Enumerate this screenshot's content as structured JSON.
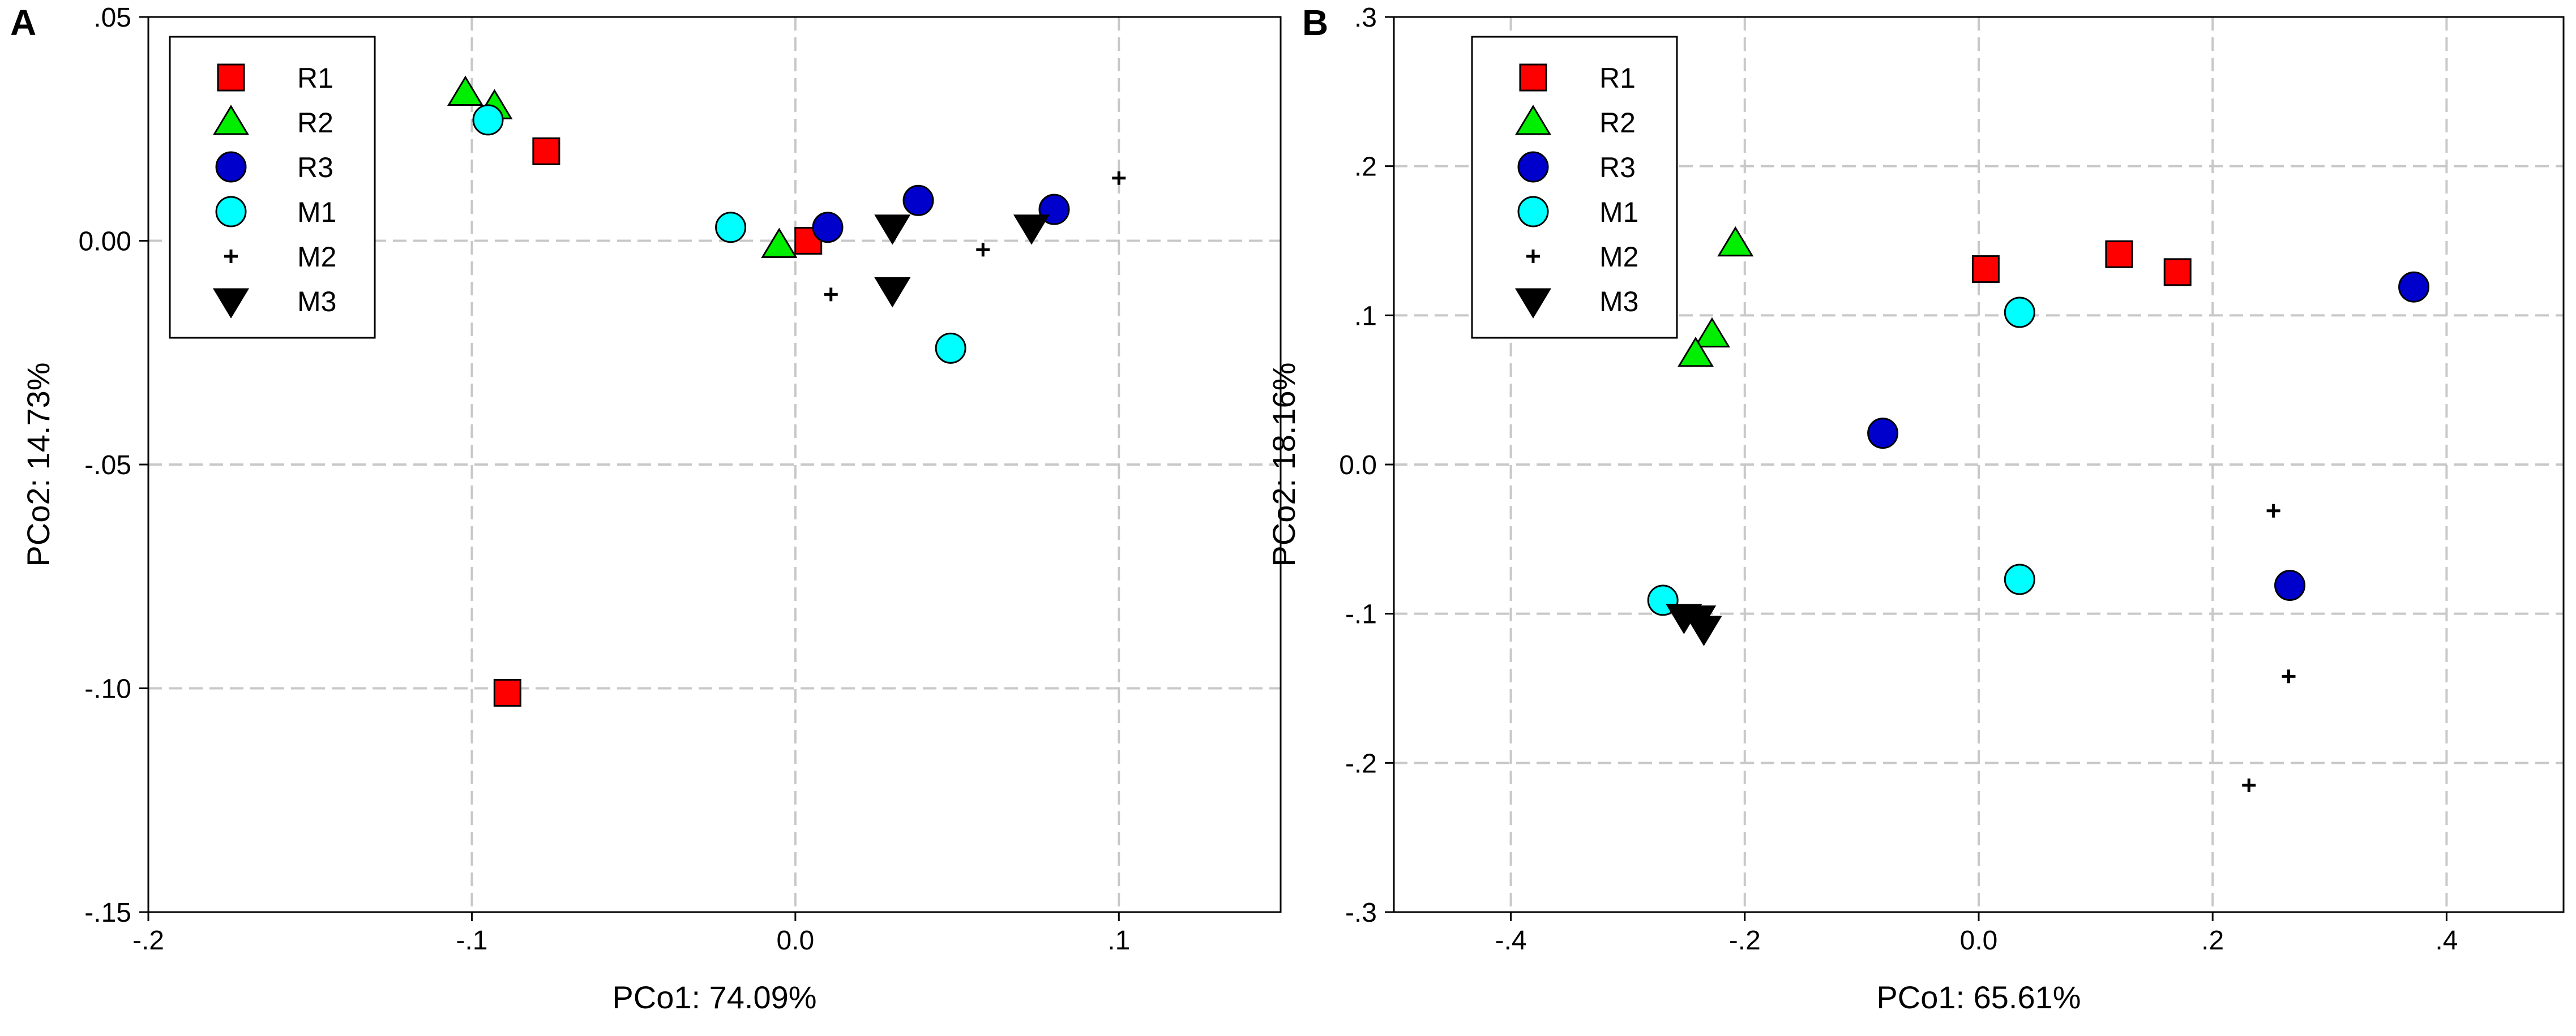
{
  "chart_data": [
    {
      "type": "scatter",
      "panel_label": "A",
      "xlabel": "PCo1: 74.09%",
      "ylabel": "PCo2: 14.73%",
      "xlim": [
        -0.2,
        0.15
      ],
      "ylim": [
        -0.15,
        0.05
      ],
      "xticks": [
        {
          "v": -0.2,
          "label": "-.2"
        },
        {
          "v": -0.1,
          "label": "-.1"
        },
        {
          "v": 0.0,
          "label": "0.0"
        },
        {
          "v": 0.1,
          "label": ".1"
        }
      ],
      "yticks": [
        {
          "v": 0.05,
          "label": ".05"
        },
        {
          "v": 0.0,
          "label": "0.00"
        },
        {
          "v": -0.05,
          "label": "-.05"
        },
        {
          "v": -0.1,
          "label": "-.10"
        },
        {
          "v": -0.15,
          "label": "-.15"
        }
      ],
      "grid": true,
      "legend_position": "top-left",
      "series": [
        {
          "name": "R1",
          "marker": "square",
          "color": "#ff0000",
          "points": [
            [
              -0.077,
              0.02
            ],
            [
              -0.089,
              -0.101
            ],
            [
              0.004,
              0.0
            ]
          ]
        },
        {
          "name": "R2",
          "marker": "triangle-up",
          "color": "#00ee00",
          "points": [
            [
              -0.102,
              0.033
            ],
            [
              -0.093,
              0.03
            ],
            [
              -0.005,
              -0.001
            ]
          ]
        },
        {
          "name": "R3",
          "marker": "circle",
          "color": "#0000cc",
          "points": [
            [
              0.01,
              0.003
            ],
            [
              0.038,
              0.009
            ],
            [
              0.08,
              0.007
            ]
          ]
        },
        {
          "name": "M1",
          "marker": "circle",
          "color": "#00ffff",
          "points": [
            [
              -0.095,
              0.027
            ],
            [
              -0.02,
              0.003
            ],
            [
              0.048,
              -0.024
            ]
          ]
        },
        {
          "name": "M2",
          "marker": "plus",
          "color": "#000000",
          "points": [
            [
              0.011,
              -0.012
            ],
            [
              0.058,
              -0.002
            ],
            [
              0.1,
              0.014
            ]
          ]
        },
        {
          "name": "M3",
          "marker": "triangle-down",
          "color": "#000000",
          "points": [
            [
              0.03,
              0.003
            ],
            [
              0.03,
              -0.011
            ],
            [
              0.073,
              0.003
            ]
          ]
        }
      ]
    },
    {
      "type": "scatter",
      "panel_label": "B",
      "xlabel": "PCo1: 65.61%",
      "ylabel": "PCo2: 18.16%",
      "xlim": [
        -0.5,
        0.5
      ],
      "ylim": [
        -0.3,
        0.3
      ],
      "xticks": [
        {
          "v": -0.4,
          "label": "-.4"
        },
        {
          "v": -0.2,
          "label": "-.2"
        },
        {
          "v": 0.0,
          "label": "0.0"
        },
        {
          "v": 0.2,
          "label": ".2"
        },
        {
          "v": 0.4,
          "label": ".4"
        }
      ],
      "yticks": [
        {
          "v": 0.3,
          "label": ".3"
        },
        {
          "v": 0.2,
          "label": ".2"
        },
        {
          "v": 0.1,
          "label": ".1"
        },
        {
          "v": 0.0,
          "label": "0.0"
        },
        {
          "v": -0.1,
          "label": "-.1"
        },
        {
          "v": -0.2,
          "label": "-.2"
        },
        {
          "v": -0.3,
          "label": "-.3"
        }
      ],
      "grid": true,
      "legend_position": "top-left",
      "series": [
        {
          "name": "R1",
          "marker": "square",
          "color": "#ff0000",
          "points": [
            [
              0.006,
              0.131
            ],
            [
              0.12,
              0.141
            ],
            [
              0.17,
              0.129
            ]
          ]
        },
        {
          "name": "R2",
          "marker": "triangle-up",
          "color": "#00ee00",
          "points": [
            [
              -0.208,
              0.148
            ],
            [
              -0.228,
              0.087
            ],
            [
              -0.242,
              0.074
            ]
          ]
        },
        {
          "name": "R3",
          "marker": "circle",
          "color": "#0000cc",
          "points": [
            [
              -0.082,
              0.021
            ],
            [
              0.372,
              0.119
            ],
            [
              0.266,
              -0.081
            ]
          ]
        },
        {
          "name": "M1",
          "marker": "circle",
          "color": "#00ffff",
          "points": [
            [
              0.035,
              0.102
            ],
            [
              0.035,
              -0.077
            ],
            [
              -0.27,
              -0.091
            ]
          ]
        },
        {
          "name": "M2",
          "marker": "plus",
          "color": "#000000",
          "points": [
            [
              0.252,
              -0.031
            ],
            [
              0.265,
              -0.142
            ],
            [
              0.231,
              -0.215
            ]
          ]
        },
        {
          "name": "M3",
          "marker": "triangle-down",
          "color": "#000000",
          "points": [
            [
              -0.252,
              -0.102
            ],
            [
              -0.24,
              -0.103
            ],
            [
              -0.235,
              -0.11
            ]
          ]
        }
      ]
    }
  ]
}
